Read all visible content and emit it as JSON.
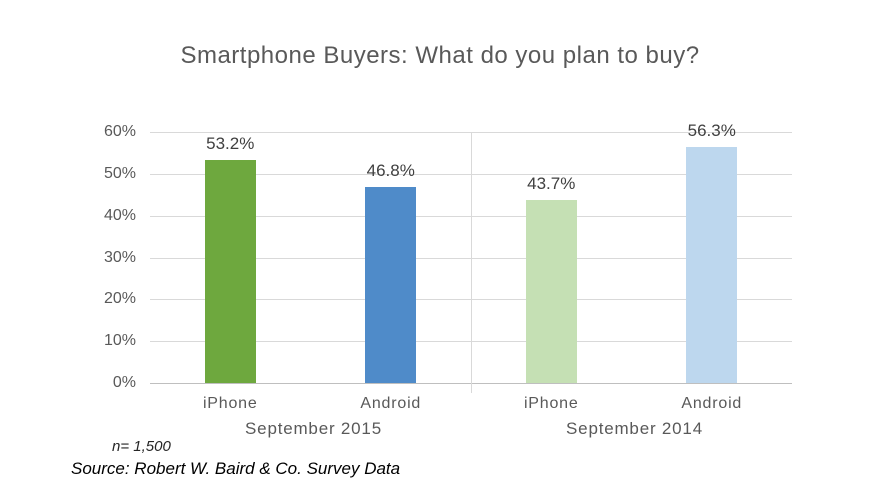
{
  "chart_data": {
    "type": "bar",
    "title": "Smartphone Buyers: What do you plan to buy?",
    "xlabel": "",
    "ylabel": "",
    "y_axis": {
      "min": 0,
      "max": 60,
      "step": 10,
      "ticks": [
        "0%",
        "10%",
        "20%",
        "30%",
        "40%",
        "50%",
        "60%"
      ]
    },
    "gridlines": true,
    "legend": "none",
    "groups": [
      {
        "label": "September 2015",
        "bars": [
          {
            "category": "iPhone",
            "value": 53.2,
            "data_label": "53.2%",
            "color": "#6ea83e"
          },
          {
            "category": "Android",
            "value": 46.8,
            "data_label": "46.8%",
            "color": "#4f8bc9"
          }
        ]
      },
      {
        "label": "September 2014",
        "bars": [
          {
            "category": "iPhone",
            "value": 43.7,
            "data_label": "43.7%",
            "color": "#c5e0b4"
          },
          {
            "category": "Android",
            "value": 56.3,
            "data_label": "56.3%",
            "color": "#bdd7ee"
          }
        ]
      }
    ]
  },
  "footnote": {
    "n_label": "n= 1,500",
    "source": "Source: Robert W. Baird & Co. Survey Data"
  },
  "colors": {
    "title_text": "#595959",
    "axis_text": "#595959",
    "data_label_text": "#404040",
    "gridline": "#d9d9d9",
    "axis_line": "#bfbfbf",
    "background": "#ffffff"
  }
}
